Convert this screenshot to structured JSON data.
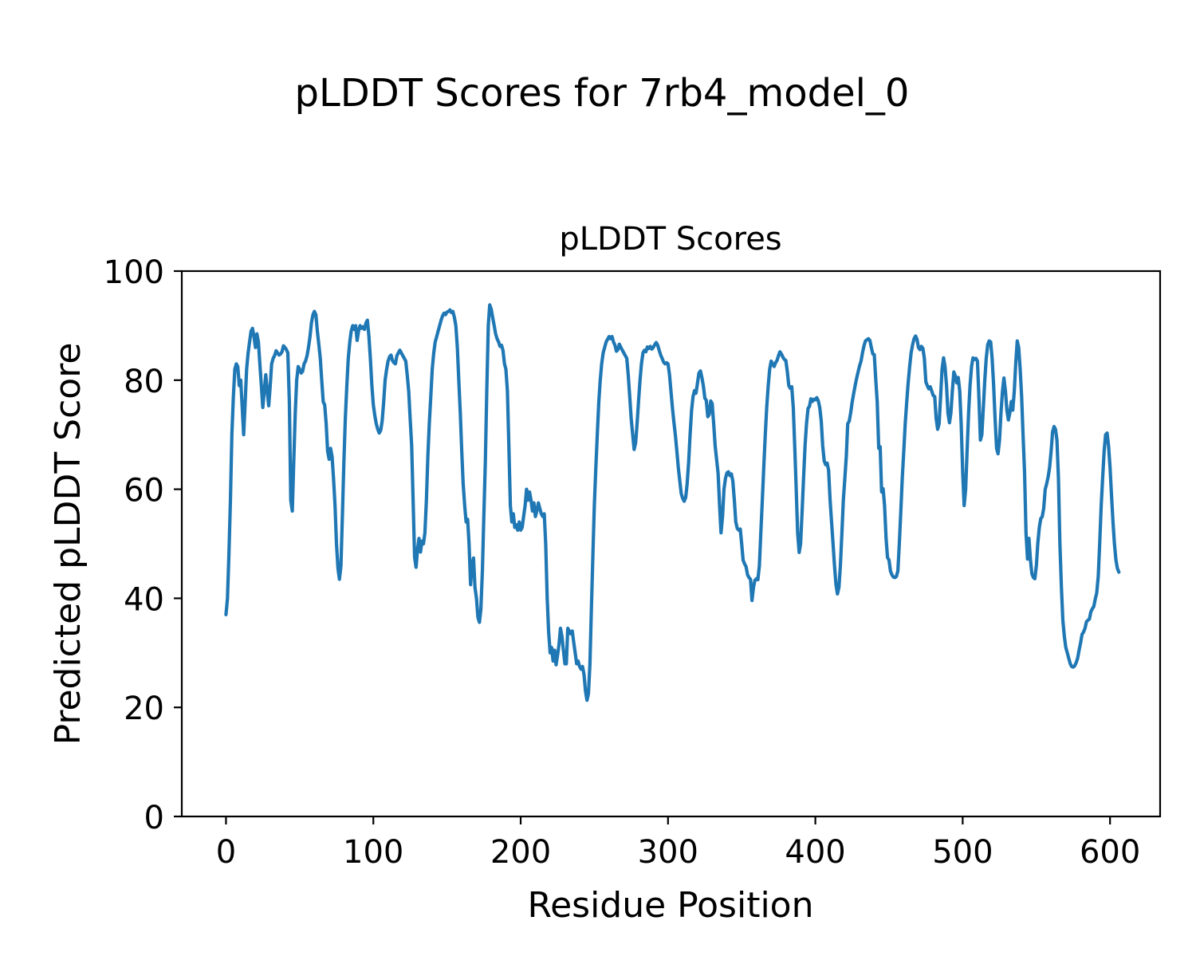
{
  "figure": {
    "suptitle": "pLDDT Scores for 7rb4_model_0",
    "background": "#ffffff",
    "text_color": "#000000"
  },
  "chart_data": {
    "type": "line",
    "title": "pLDDT Scores",
    "xlabel": "Residue Position",
    "ylabel": "Predicted pLDDT Score",
    "xlim": [
      -30,
      634
    ],
    "ylim": [
      0,
      100
    ],
    "x_ticks": [
      0,
      100,
      200,
      300,
      400,
      500,
      600
    ],
    "y_ticks": [
      0,
      20,
      40,
      60,
      80,
      100
    ],
    "grid": false,
    "legend": null,
    "line_color": "#1f77b4",
    "axis_color": "#000000",
    "series": [
      {
        "name": "pLDDT",
        "x_start": 0,
        "x_step": 1,
        "values": [
          37,
          40,
          48,
          58,
          70,
          77,
          82,
          83,
          82.5,
          79,
          80,
          75,
          70,
          76,
          82,
          85,
          87,
          89,
          89.5,
          88,
          86,
          88.5,
          87,
          83,
          79,
          75,
          78,
          81,
          78,
          75.3,
          79,
          83,
          84,
          84.5,
          85.4,
          85,
          84.6,
          84.8,
          85.2,
          86.3,
          86,
          85.6,
          85,
          76,
          58,
          56,
          65,
          74,
          80,
          82.5,
          82,
          81.3,
          81.6,
          83,
          83.5,
          84.5,
          86,
          88,
          90.5,
          92,
          92.6,
          92,
          89,
          86.5,
          84,
          80,
          76,
          75.5,
          72,
          67,
          65.5,
          67.5,
          66,
          62,
          57,
          50,
          45.5,
          43.5,
          46,
          55,
          65,
          73,
          79,
          84,
          87,
          89,
          90,
          89.3,
          90,
          87.3,
          89,
          90,
          89.5,
          89.8,
          89.3,
          90.5,
          91,
          88,
          84,
          79,
          75.5,
          73.5,
          72,
          71,
          70.3,
          70.8,
          72.5,
          76,
          80,
          82,
          83.5,
          84.3,
          84.6,
          83.6,
          83.2,
          83,
          84.5,
          85,
          85.5,
          85,
          84.5,
          84,
          83.5,
          81,
          78,
          73,
          68,
          58,
          47.5,
          45.7,
          49,
          51,
          48.5,
          50.5,
          50,
          52,
          58,
          66,
          72,
          77,
          82,
          85,
          87,
          88,
          89,
          90,
          91,
          91.8,
          92.3,
          92,
          92.5,
          92.6,
          92.9,
          92.4,
          92.6,
          91.5,
          90,
          86,
          80,
          74,
          67,
          61,
          57,
          54,
          54.5,
          50,
          42.5,
          46,
          47.4,
          42,
          40,
          36.5,
          35.6,
          38,
          45,
          55,
          65,
          78,
          90,
          93.8,
          93,
          91.5,
          90,
          88.5,
          87.6,
          87,
          86.2,
          86.4,
          85.5,
          83,
          82,
          78,
          68,
          57,
          54,
          55.5,
          53,
          53.5,
          52.5,
          54,
          52.5,
          53,
          55,
          57,
          60,
          58,
          59.5,
          58,
          56,
          57.5,
          55,
          56,
          57.5,
          56.5,
          55.5,
          55,
          55.5,
          50,
          40,
          33.8,
          30,
          31,
          28.5,
          30.5,
          27.8,
          29.5,
          31.5,
          34.5,
          33,
          30.5,
          28,
          28,
          34.5,
          34,
          33.5,
          34,
          32,
          30,
          28,
          28.5,
          27.5,
          27,
          27.5,
          26,
          23,
          21.3,
          22.5,
          28,
          38,
          48,
          57,
          64,
          70,
          76,
          80,
          83,
          85,
          86,
          87,
          87.5,
          88,
          87.6,
          88,
          87,
          86.4,
          85.3,
          85.6,
          86.6,
          86,
          85.5,
          85,
          84.5,
          84,
          81,
          77,
          73,
          70,
          67.3,
          68.5,
          72,
          76,
          80,
          83,
          85,
          85.5,
          85.2,
          86.1,
          85.8,
          86.2,
          85.7,
          86,
          86.5,
          86.9,
          86.4,
          85.5,
          84.6,
          84,
          83.3,
          83,
          83.2,
          83,
          81,
          78,
          75,
          72.3,
          70,
          67,
          64,
          61.5,
          59.2,
          58.3,
          57.8,
          58.5,
          61,
          65,
          70,
          74.5,
          77,
          78.1,
          77.6,
          79.5,
          81.3,
          81.7,
          80.5,
          78.9,
          76.7,
          76.3,
          73.3,
          73.7,
          76.2,
          75.7,
          72,
          68,
          65.4,
          63,
          57,
          52,
          55,
          60,
          62,
          63,
          63.2,
          62.5,
          62.8,
          61.5,
          58,
          54,
          52.8,
          52.5,
          52.7,
          50,
          47,
          46.3,
          45.8,
          44.3,
          43.8,
          43.5,
          39.6,
          42,
          43.3,
          43.6,
          43.4,
          46,
          52,
          58,
          64,
          70,
          75,
          79,
          82,
          83.5,
          83,
          82.5,
          83.2,
          83.6,
          84.5,
          85.2,
          84.8,
          84.2,
          83.8,
          83.6,
          81.5,
          79,
          78.5,
          78.8,
          75,
          68,
          60,
          52,
          48.4,
          50,
          56,
          62,
          68,
          72,
          74.8,
          75.2,
          76.6,
          76.1,
          76.5,
          76.4,
          76.8,
          76.2,
          75,
          72.5,
          68,
          65.2,
          64.5,
          64.8,
          63.5,
          58,
          54.1,
          50,
          46,
          42.5,
          40.8,
          42,
          46,
          52,
          58,
          62,
          66,
          72,
          72.5,
          74,
          76,
          77.5,
          79,
          80.3,
          81.5,
          82.6,
          83.5,
          85,
          86.3,
          87.2,
          87.4,
          87.6,
          87.3,
          86,
          84.8,
          84.7,
          80,
          76,
          67.5,
          67.8,
          59.5,
          60.1,
          57,
          51,
          47.5,
          47,
          45,
          44.3,
          43.9,
          43.8,
          44,
          45,
          50,
          56,
          62,
          67,
          72,
          76,
          79.5,
          82.5,
          85,
          86.5,
          87.6,
          88.1,
          87.5,
          86,
          85.6,
          86.2,
          85.8,
          84,
          79.7,
          79,
          78.4,
          78.8,
          78,
          77.2,
          77,
          73,
          71,
          72,
          77,
          82,
          84.1,
          82.5,
          79,
          74,
          72.2,
          74,
          78,
          81.5,
          80.8,
          79.5,
          80.5,
          78,
          72,
          63,
          57,
          60,
          67,
          74,
          79,
          82.5,
          84.1,
          83.8,
          84,
          83.5,
          77,
          69,
          70,
          75,
          80,
          84,
          86.5,
          87.2,
          87,
          84,
          79,
          73,
          67.5,
          66.5,
          69,
          74,
          78,
          80.4,
          78,
          74.5,
          72.7,
          74,
          76.1,
          74.5,
          78,
          83,
          87.2,
          86,
          82,
          77,
          70,
          63,
          52,
          47.2,
          51,
          47,
          44.5,
          43.8,
          43.6,
          46,
          50.1,
          53,
          54.6,
          55,
          56.5,
          60,
          61,
          62.3,
          64,
          67,
          70.5,
          71.5,
          71,
          69,
          62,
          50,
          42,
          36,
          33,
          31,
          30,
          29,
          28,
          27.5,
          27.4,
          27.6,
          28.2,
          29,
          30.5,
          31.8,
          33.4,
          33.8,
          34.5,
          35.7,
          36,
          36.2,
          37.5,
          38.1,
          38.5,
          39.9,
          41,
          44,
          50,
          57,
          62,
          67,
          70,
          70.3,
          68,
          64,
          59,
          54,
          50,
          47,
          45.5,
          44.8
        ]
      }
    ]
  }
}
